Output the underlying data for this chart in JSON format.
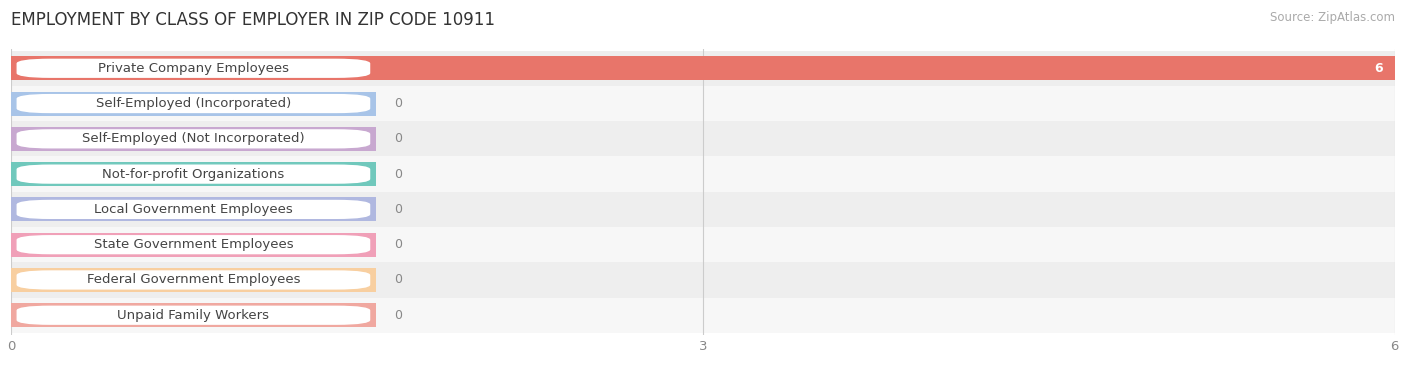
{
  "title": "EMPLOYMENT BY CLASS OF EMPLOYER IN ZIP CODE 10911",
  "source": "Source: ZipAtlas.com",
  "categories": [
    "Private Company Employees",
    "Self-Employed (Incorporated)",
    "Self-Employed (Not Incorporated)",
    "Not-for-profit Organizations",
    "Local Government Employees",
    "State Government Employees",
    "Federal Government Employees",
    "Unpaid Family Workers"
  ],
  "values": [
    6,
    0,
    0,
    0,
    0,
    0,
    0,
    0
  ],
  "bar_colors": [
    "#e8756a",
    "#a8c4e8",
    "#c8a8d0",
    "#70c8bc",
    "#b0b8e0",
    "#f0a0b8",
    "#f8cfa0",
    "#f0a8a0"
  ],
  "bg_color": "#f5f5f5",
  "row_bg_light": "#f7f7f7",
  "row_bg_dark": "#eeeeee",
  "xlim": [
    0,
    6
  ],
  "xticks": [
    0,
    3,
    6
  ],
  "bar_height": 0.68,
  "value_label_color_bar": "#ffffff",
  "value_label_color_zero": "#888888",
  "title_fontsize": 12,
  "label_fontsize": 9.5,
  "value_fontsize": 9,
  "source_fontsize": 8.5
}
